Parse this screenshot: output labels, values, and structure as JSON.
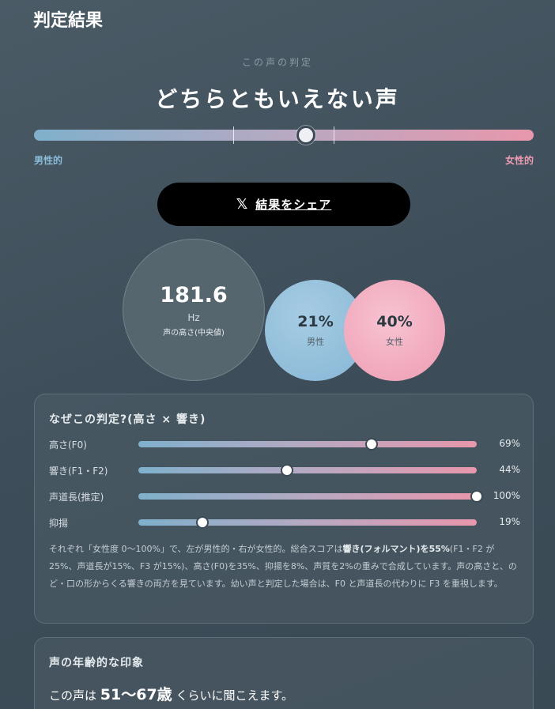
{
  "header": {
    "title": "判定結果"
  },
  "verdict": {
    "label": "この声の判定",
    "text": "どちらともいえない声",
    "position": 0.545,
    "left_end": "男性的",
    "right_end": "女性的"
  },
  "share": {
    "icon": "x-logo-icon",
    "label": "結果をシェア"
  },
  "pitch": {
    "value": "181.6",
    "unit": "Hz",
    "caption": "声の高さ(中央値)"
  },
  "ratio": {
    "male_pct": "21%",
    "male_label": "男性",
    "female_pct": "40%",
    "female_label": "女性"
  },
  "why": {
    "title": "なぜこの判定?(高さ × 響き)",
    "metrics": [
      {
        "label": "高さ(F0)",
        "value": "69%",
        "level": 0.69
      },
      {
        "label": "響き(F1・F2)",
        "value": "44%",
        "level": 0.44
      },
      {
        "label": "声道長(推定)",
        "value": "100%",
        "level": 1.0
      },
      {
        "label": "抑揚",
        "value": "19%",
        "level": 0.19
      }
    ],
    "note_pre": "それぞれ「女性度 0〜100%」で、左が男性的・右が女性的。総合スコアは",
    "note_bold": "響き(フォルマント)を55%",
    "note_post": "(F1・F2 が25%、声道長が15%、F3 が15%)、高さ(F0)を35%、抑揚を8%、声質を2%の重みで合成しています。声の高さと、のど・口の形からくる響きの両方を見ています。幼い声と判定した場合は、F0 と声道長の代わりに F3 を重視します。"
  },
  "age": {
    "title": "声の年齢的な印象",
    "prefix": "この声は ",
    "range": "51〜67歳",
    "suffix": " くらいに聞こえます。"
  },
  "colors": {
    "male": "#86b6d5",
    "female": "#ee9bb2",
    "share_button": "#000000"
  }
}
